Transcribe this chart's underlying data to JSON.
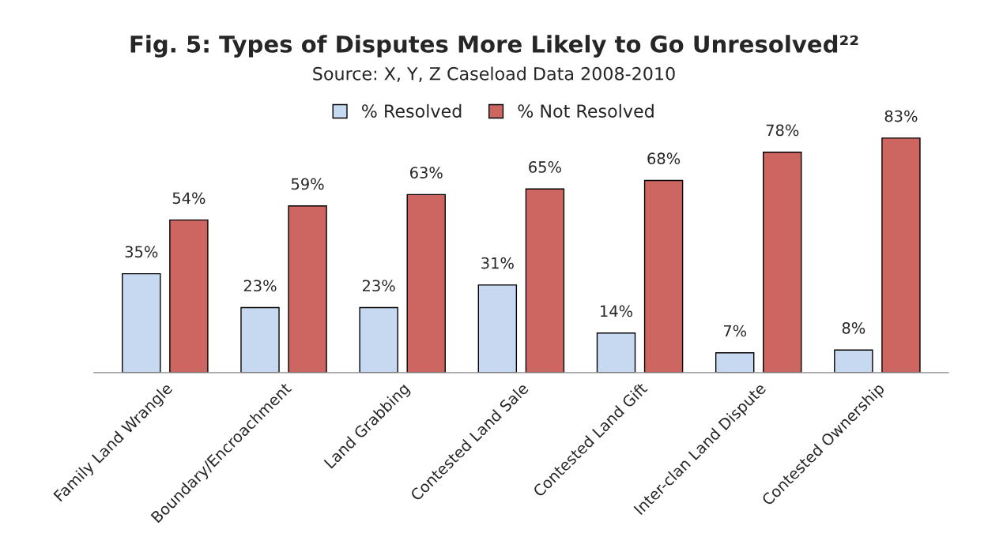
{
  "chart_data": {
    "type": "bar",
    "title": "Fig. 5: Types of Disputes More Likely to Go Unresolved²²",
    "subtitle": "Source: X, Y, Z Caseload Data 2008-2010",
    "categories": [
      "Family Land Wrangle",
      "Boundary/Encroachment",
      "Land Grabbing",
      "Contested Land Sale",
      "Contested Land Gift",
      "Inter-clan Land Dispute",
      "Contested Ownership"
    ],
    "series": [
      {
        "name": "% Resolved",
        "color": "#c6d9f1",
        "values": [
          35,
          23,
          23,
          31,
          14,
          7,
          8
        ],
        "value_labels": [
          "35%",
          "23%",
          "23%",
          "31%",
          "14%",
          "7%",
          "8%"
        ]
      },
      {
        "name": "% Not Resolved",
        "color": "#cd6660",
        "values": [
          54,
          59,
          63,
          65,
          68,
          78,
          83
        ],
        "value_labels": [
          "54%",
          "59%",
          "63%",
          "65%",
          "68%",
          "78%",
          "83%"
        ]
      }
    ],
    "legend": "top",
    "grid": false,
    "tick_labels": "x"
  }
}
